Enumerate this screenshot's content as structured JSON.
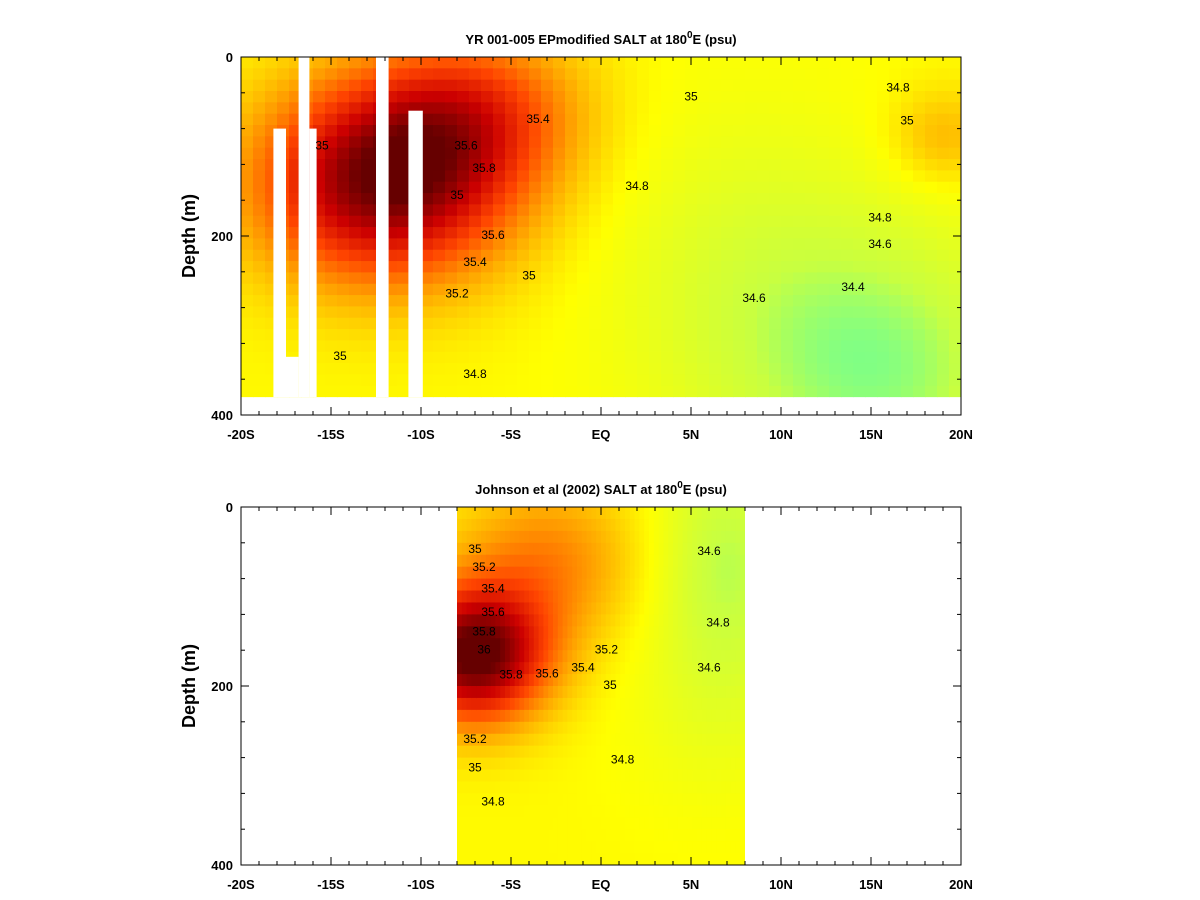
{
  "chart_data": [
    {
      "type": "heatmap",
      "title_main": "YR 001-005 EPmodified SALT at 180",
      "title_sup": "0",
      "title_end": "E (psu)",
      "ylabel": "Depth (m)",
      "xticks": [
        "-20S",
        "-15S",
        "-10S",
        "-5S",
        "EQ",
        "5N",
        "10N",
        "15N",
        "20N"
      ],
      "yticks": [
        "0",
        "200",
        "400"
      ],
      "xlim": [
        -20,
        20
      ],
      "ylim": [
        0,
        400
      ],
      "data_depth_max": 380,
      "colormap": [
        "#20ffe0",
        "#c8ff40",
        "#ffff00",
        "#ffa500",
        "#ff4500",
        "#cc0000",
        "#660000"
      ],
      "masked_bars": [
        {
          "x0": -18.2,
          "x1": -17.5,
          "y0": 80,
          "y1": 380
        },
        {
          "x0": -17.5,
          "x1": -16.8,
          "y0": 335,
          "y1": 380
        },
        {
          "x0": -16.8,
          "x1": -16.2,
          "y0": 0,
          "y1": 380
        },
        {
          "x0": -16.2,
          "x1": -15.8,
          "y0": 80,
          "y1": 380
        },
        {
          "x0": -12.5,
          "x1": -11.8,
          "y0": 0,
          "y1": 380
        },
        {
          "x0": -10.7,
          "x1": -9.9,
          "y0": 60,
          "y1": 380
        }
      ],
      "contour_labels": [
        {
          "text": "35.4",
          "x": -3.5,
          "y": 70
        },
        {
          "text": "35",
          "x": 5,
          "y": 45
        },
        {
          "text": "34.8",
          "x": 16.5,
          "y": 35
        },
        {
          "text": "35",
          "x": 17,
          "y": 72
        },
        {
          "text": "35.6",
          "x": -7.5,
          "y": 100
        },
        {
          "text": "35.8",
          "x": -6.5,
          "y": 125
        },
        {
          "text": "35",
          "x": -15.5,
          "y": 100
        },
        {
          "text": "35",
          "x": -8,
          "y": 155
        },
        {
          "text": "34.8",
          "x": 2,
          "y": 145
        },
        {
          "text": "35.6",
          "x": -6,
          "y": 200
        },
        {
          "text": "35.4",
          "x": -7,
          "y": 230
        },
        {
          "text": "35",
          "x": -4,
          "y": 245
        },
        {
          "text": "35.2",
          "x": -8,
          "y": 265
        },
        {
          "text": "34.8",
          "x": 15.5,
          "y": 180
        },
        {
          "text": "34.6",
          "x": 15.5,
          "y": 210
        },
        {
          "text": "34.4",
          "x": 14,
          "y": 258
        },
        {
          "text": "34.6",
          "x": 8.5,
          "y": 270
        },
        {
          "text": "35",
          "x": -14.5,
          "y": 335
        },
        {
          "text": "34.8",
          "x": -7,
          "y": 355
        }
      ]
    },
    {
      "type": "heatmap",
      "title_main": "Johnson et al (2002) SALT at 180",
      "title_sup": "0",
      "title_end": "E (psu)",
      "ylabel": "Depth (m)",
      "xticks": [
        "-20S",
        "-15S",
        "-10S",
        "-5S",
        "EQ",
        "5N",
        "10N",
        "15N",
        "20N"
      ],
      "yticks": [
        "0",
        "200",
        "400"
      ],
      "xlim": [
        -20,
        20
      ],
      "ylim": [
        0,
        400
      ],
      "data_xlim": [
        -8,
        8
      ],
      "colormap": [
        "#20ffe0",
        "#c8ff40",
        "#ffff00",
        "#ffa500",
        "#ff4500",
        "#cc0000",
        "#660000"
      ],
      "contour_labels": [
        {
          "text": "35",
          "x": -7,
          "y": 48
        },
        {
          "text": "35.2",
          "x": -6.5,
          "y": 68
        },
        {
          "text": "35.4",
          "x": -6,
          "y": 92
        },
        {
          "text": "34.6",
          "x": 6,
          "y": 50
        },
        {
          "text": "35.6",
          "x": -6,
          "y": 118
        },
        {
          "text": "35.8",
          "x": -6.5,
          "y": 140
        },
        {
          "text": "36",
          "x": -6.5,
          "y": 160
        },
        {
          "text": "34.8",
          "x": 6.5,
          "y": 130
        },
        {
          "text": "35.2",
          "x": 0.3,
          "y": 160
        },
        {
          "text": "34.6",
          "x": 6,
          "y": 180
        },
        {
          "text": "35.4",
          "x": -1,
          "y": 180
        },
        {
          "text": "35.6",
          "x": -3,
          "y": 187
        },
        {
          "text": "35.8",
          "x": -5,
          "y": 188
        },
        {
          "text": "35",
          "x": 0.5,
          "y": 200
        },
        {
          "text": "35.2",
          "x": -7,
          "y": 260
        },
        {
          "text": "34.8",
          "x": 1.2,
          "y": 283
        },
        {
          "text": "35",
          "x": -7,
          "y": 292
        },
        {
          "text": "34.8",
          "x": -6,
          "y": 330
        }
      ]
    }
  ]
}
